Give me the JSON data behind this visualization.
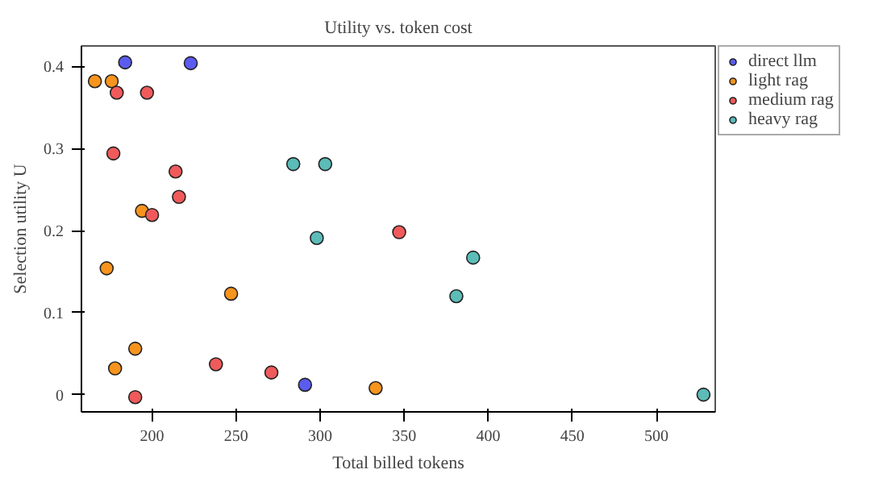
{
  "chart_data": {
    "type": "scatter",
    "title": "Utility vs. token cost",
    "xlabel": "Total billed tokens",
    "ylabel": "Selection utility U",
    "xlim": [
      158,
      535
    ],
    "ylim": [
      -0.021,
      0.425
    ],
    "xticks": [
      200,
      250,
      300,
      350,
      400,
      450,
      500
    ],
    "yticks": [
      0,
      0.1,
      0.2,
      0.3,
      0.4
    ],
    "grid": false,
    "legend": "top right",
    "marker": "circle",
    "series": [
      {
        "name": "direct llm",
        "color": "#5b5bf0",
        "x": [
          184,
          223,
          291
        ],
        "values": [
          0.405,
          0.404,
          0.012
        ]
      },
      {
        "name": "light rag",
        "color": "#f7941d",
        "x": [
          166,
          176,
          173,
          194,
          190,
          178,
          247,
          333
        ],
        "values": [
          0.382,
          0.382,
          0.154,
          0.224,
          0.056,
          0.032,
          0.123,
          0.008
        ]
      },
      {
        "name": "medium rag",
        "color": "#f05a5a",
        "x": [
          179,
          197,
          177,
          214,
          216,
          200,
          190,
          238,
          271,
          347
        ],
        "values": [
          0.368,
          0.368,
          0.294,
          0.272,
          0.241,
          0.219,
          -0.003,
          0.037,
          0.027,
          0.198
        ]
      },
      {
        "name": "heavy rag",
        "color": "#5bbcb8",
        "x": [
          284,
          303,
          298,
          391,
          381,
          528
        ],
        "values": [
          0.281,
          0.281,
          0.191,
          0.167,
          0.12,
          0.0
        ]
      }
    ]
  }
}
